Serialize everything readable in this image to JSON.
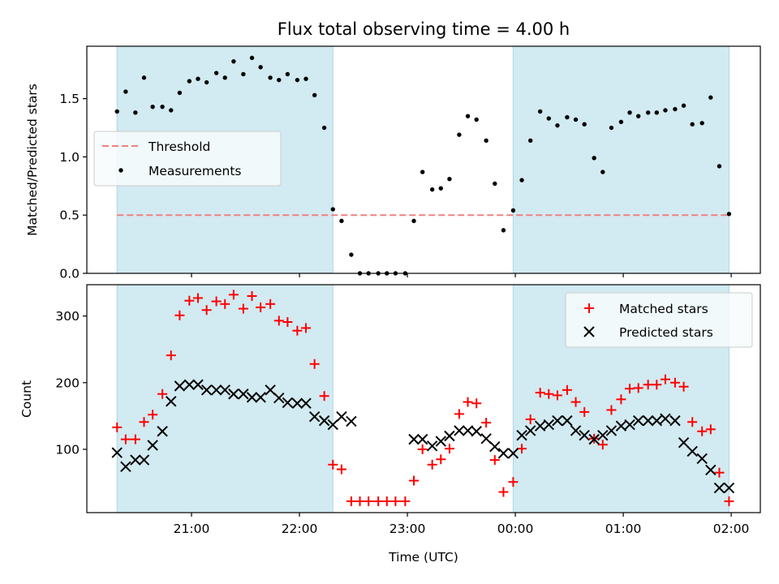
{
  "chart_data": {
    "title": "Flux total observing time = 4.00 h",
    "xlabel": "Time (UTC)",
    "x_unit": "hours since 21:00 UTC (negative = before 21:00)",
    "xticks": [
      {
        "x": 0,
        "label": "21:00"
      },
      {
        "x": 1,
        "label": "22:00"
      },
      {
        "x": 2,
        "label": "23:00"
      },
      {
        "x": 3,
        "label": "00:00"
      },
      {
        "x": 4,
        "label": "01:00"
      },
      {
        "x": 5,
        "label": "02:00"
      }
    ],
    "xlim": [
      -0.97,
      5.27
    ],
    "shaded_intervals": [
      [
        -0.69,
        1.31
      ],
      [
        2.98,
        4.98
      ]
    ],
    "shade_color": "#add8e6",
    "panels": [
      {
        "type": "scatter",
        "ylabel": "Matched/Predicted stars",
        "ylim": [
          0,
          1.95
        ],
        "yticks": [
          {
            "y": 0.0,
            "label": "0.0"
          },
          {
            "y": 0.5,
            "label": "0.5"
          },
          {
            "y": 1.0,
            "label": "1.0"
          },
          {
            "y": 1.5,
            "label": "1.5"
          }
        ],
        "threshold": {
          "name": "Threshold",
          "value": 0.5,
          "color": "#f08080"
        },
        "legend": {
          "placement": "center-left"
        },
        "series": [
          {
            "name": "Measurements",
            "marker": "dot",
            "color": "#000000",
            "x": [
              -0.69,
              -0.61,
              -0.52,
              -0.44,
              -0.36,
              -0.27,
              -0.19,
              -0.11,
              -0.02,
              0.06,
              0.14,
              0.23,
              0.31,
              0.39,
              0.48,
              0.56,
              0.64,
              0.73,
              0.81,
              0.89,
              0.98,
              1.06,
              1.14,
              1.23,
              1.31,
              1.39,
              1.48,
              1.56,
              1.64,
              1.73,
              1.81,
              1.89,
              1.98,
              2.06,
              2.14,
              2.23,
              2.31,
              2.39,
              2.48,
              2.56,
              2.64,
              2.73,
              2.81,
              2.89,
              2.98,
              3.06,
              3.14,
              3.23,
              3.31,
              3.39,
              3.48,
              3.56,
              3.64,
              3.73,
              3.81,
              3.89,
              3.98,
              4.06,
              4.14,
              4.23,
              4.31,
              4.39,
              4.48,
              4.56,
              4.64,
              4.73,
              4.81,
              4.89,
              4.98
            ],
            "y": [
              1.39,
              1.56,
              1.38,
              1.68,
              1.43,
              1.43,
              1.4,
              1.55,
              1.65,
              1.67,
              1.64,
              1.72,
              1.68,
              1.82,
              1.71,
              1.85,
              1.77,
              1.68,
              1.66,
              1.71,
              1.66,
              1.67,
              1.53,
              1.25,
              0.55,
              0.45,
              0.16,
              0.0,
              0.0,
              0.0,
              0.0,
              0.0,
              0.0,
              0.45,
              0.87,
              0.72,
              0.73,
              0.81,
              1.19,
              1.35,
              1.32,
              1.14,
              0.77,
              0.37,
              0.54,
              0.8,
              1.14,
              1.39,
              1.33,
              1.27,
              1.34,
              1.32,
              1.28,
              0.99,
              0.87,
              1.25,
              1.3,
              1.38,
              1.35,
              1.38,
              1.38,
              1.4,
              1.41,
              1.44,
              1.28,
              1.29,
              1.51,
              0.92,
              0.51
            ]
          }
        ]
      },
      {
        "type": "scatter",
        "ylabel": "Count",
        "ylim": [
          5,
          347
        ],
        "yticks": [
          {
            "y": 100,
            "label": "100"
          },
          {
            "y": 200,
            "label": "200"
          },
          {
            "y": 300,
            "label": "300"
          }
        ],
        "legend": {
          "placement": "top-right"
        },
        "series": [
          {
            "name": "Matched stars",
            "marker": "plus",
            "color": "#ff0000",
            "x": [
              -0.69,
              -0.61,
              -0.52,
              -0.44,
              -0.36,
              -0.27,
              -0.19,
              -0.11,
              -0.02,
              0.06,
              0.14,
              0.23,
              0.31,
              0.39,
              0.48,
              0.56,
              0.64,
              0.73,
              0.81,
              0.89,
              0.98,
              1.06,
              1.14,
              1.23,
              1.31,
              1.39,
              1.48,
              1.56,
              1.64,
              1.73,
              1.81,
              1.89,
              1.98,
              2.06,
              2.14,
              2.23,
              2.31,
              2.39,
              2.48,
              2.56,
              2.64,
              2.73,
              2.81,
              2.89,
              2.98,
              3.06,
              3.14,
              3.23,
              3.31,
              3.39,
              3.48,
              3.56,
              3.64,
              3.73,
              3.81,
              3.89,
              3.98,
              4.06,
              4.14,
              4.23,
              4.31,
              4.39,
              4.48,
              4.56,
              4.64,
              4.73,
              4.81,
              4.89,
              4.98
            ],
            "y": [
              133,
              115,
              115,
              141,
              152,
              183,
              241,
              301,
              323,
              327,
              309,
              322,
              318,
              332,
              311,
              330,
              313,
              318,
              293,
              291,
              278,
              282,
              228,
              180,
              77,
              70,
              22,
              22,
              22,
              22,
              22,
              22,
              22,
              53,
              100,
              77,
              85,
              101,
              153,
              171,
              169,
              140,
              84,
              36,
              51,
              101,
              145,
              185,
              183,
              181,
              189,
              171,
              156,
              116,
              107,
              159,
              175,
              191,
              192,
              197,
              197,
              205,
              200,
              194,
              141,
              127,
              130,
              65,
              22
            ]
          },
          {
            "name": "Predicted stars",
            "marker": "x",
            "color": "#000000",
            "x": [
              -0.69,
              -0.61,
              -0.52,
              -0.44,
              -0.36,
              -0.27,
              -0.19,
              -0.11,
              -0.02,
              0.06,
              0.14,
              0.23,
              0.31,
              0.39,
              0.48,
              0.56,
              0.64,
              0.73,
              0.81,
              0.89,
              0.98,
              1.06,
              1.14,
              1.23,
              1.31,
              1.39,
              1.48,
              2.06,
              2.14,
              2.23,
              2.31,
              2.39,
              2.48,
              2.56,
              2.64,
              2.73,
              2.81,
              2.89,
              2.98,
              3.06,
              3.14,
              3.23,
              3.31,
              3.39,
              3.48,
              3.56,
              3.64,
              3.73,
              3.81,
              3.89,
              3.98,
              4.06,
              4.14,
              4.23,
              4.31,
              4.39,
              4.48,
              4.56,
              4.64,
              4.73,
              4.81,
              4.89,
              4.98
            ],
            "y": [
              95,
              74,
              84,
              84,
              106,
              127,
              172,
              195,
              197,
              197,
              189,
              189,
              189,
              183,
              183,
              178,
              178,
              189,
              177,
              170,
              169,
              169,
              149,
              143,
              137,
              149,
              142,
              115,
              115,
              105,
              112,
              120,
              128,
              128,
              127,
              116,
              104,
              94,
              94,
              121,
              128,
              135,
              137,
              143,
              143,
              128,
              121,
              115,
              121,
              128,
              135,
              137,
              143,
              143,
              143,
              146,
              143,
              110,
              97,
              86,
              69,
              42,
              42
            ]
          }
        ]
      }
    ]
  }
}
